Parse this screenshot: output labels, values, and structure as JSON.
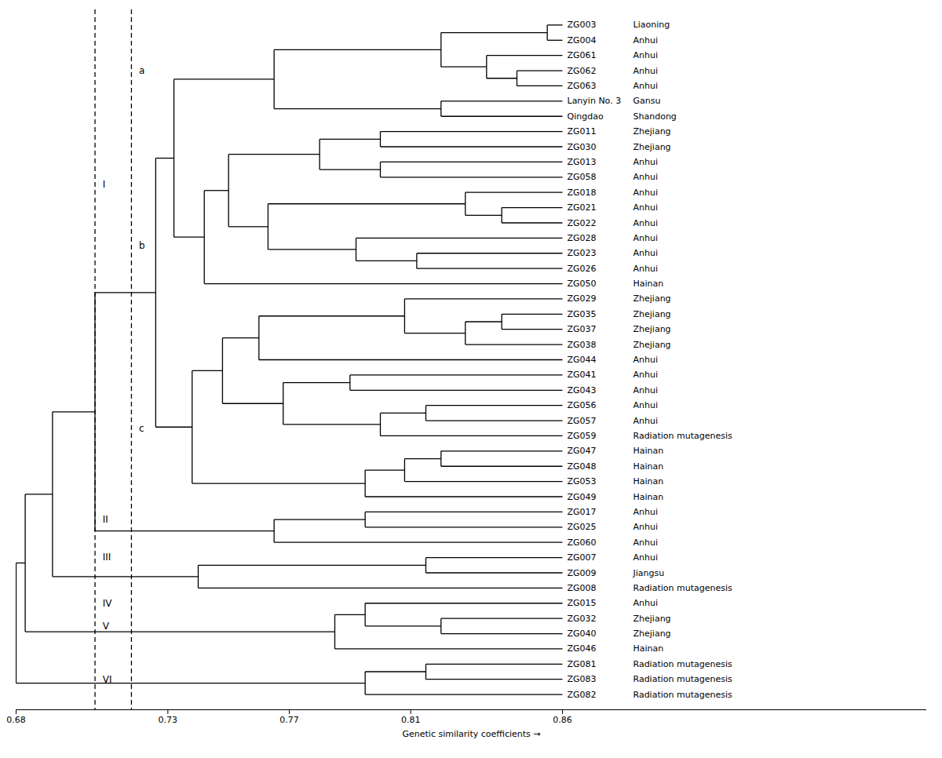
{
  "chart_data": {
    "type": "dendrogram",
    "xlabel": "Genetic similarity coefficients",
    "xlim": [
      0.68,
      0.98
    ],
    "xticks": [
      0.68,
      0.73,
      0.77,
      0.81,
      0.86
    ],
    "grid": false,
    "color": "#000000",
    "leaf_similarity": 0.86,
    "leaves": [
      "ZG003",
      "ZG004",
      "ZG061",
      "ZG062",
      "ZG063",
      "Lanyin No. 3",
      "Qingdao",
      "ZG011",
      "ZG030",
      "ZG013",
      "ZG058",
      "ZG018",
      "ZG021",
      "ZG022",
      "ZG028",
      "ZG023",
      "ZG026",
      "ZG050",
      "ZG029",
      "ZG035",
      "ZG037",
      "ZG038",
      "ZG044",
      "ZG041",
      "ZG043",
      "ZG056",
      "ZG057",
      "ZG059",
      "ZG047",
      "ZG048",
      "ZG053",
      "ZG049",
      "ZG017",
      "ZG025",
      "ZG060",
      "ZG007",
      "ZG009",
      "ZG008",
      "ZG015",
      "ZG032",
      "ZG040",
      "ZG046",
      "ZG081",
      "ZG083",
      "ZG082"
    ],
    "origins": [
      "Liaoning",
      "Anhui",
      "Anhui",
      "Anhui",
      "Anhui",
      "Gansu",
      "Shandong",
      "Zhejiang",
      "Zhejiang",
      "Anhui",
      "Anhui",
      "Anhui",
      "Anhui",
      "Anhui",
      "Anhui",
      "Anhui",
      "Anhui",
      "Hainan",
      "Zhejiang",
      "Zhejiang",
      "Zhejiang",
      "Zhejiang",
      "Anhui",
      "Anhui",
      "Anhui",
      "Anhui",
      "Anhui",
      "Radiation mutagenesis",
      "Hainan",
      "Hainan",
      "Hainan",
      "Hainan",
      "Anhui",
      "Anhui",
      "Anhui",
      "Anhui",
      "Jiangsu",
      "Radiation mutagenesis",
      "Anhui",
      "Zhejiang",
      "Zhejiang",
      "Hainan",
      "Radiation mutagenesis",
      "Radiation mutagenesis",
      "Radiation mutagenesis"
    ],
    "tree": {
      "similarity": 0.68,
      "children": [
        {
          "similarity": 0.683,
          "children": [
            {
              "similarity": 0.692,
              "children": [
                {
                  "similarity": 0.706,
                  "children": [
                    {
                      "similarity": 0.726,
                      "children": [
                        {
                          "similarity": 0.732,
                          "children": [
                            {
                              "similarity": 0.765,
                              "children": [
                                {
                                  "similarity": 0.82,
                                  "children": [
                                    {
                                      "similarity": 0.855,
                                      "children": [
                                        "ZG003",
                                        "ZG004"
                                      ]
                                    },
                                    {
                                      "similarity": 0.835,
                                      "children": [
                                        "ZG061",
                                        {
                                          "similarity": 0.845,
                                          "children": [
                                            "ZG062",
                                            "ZG063"
                                          ]
                                        }
                                      ]
                                    }
                                  ]
                                },
                                {
                                  "similarity": 0.82,
                                  "children": [
                                    "Lanyin No. 3",
                                    "Qingdao"
                                  ]
                                }
                              ]
                            },
                            {
                              "similarity": 0.742,
                              "children": [
                                {
                                  "similarity": 0.75,
                                  "children": [
                                    {
                                      "similarity": 0.78,
                                      "children": [
                                        {
                                          "similarity": 0.8,
                                          "children": [
                                            "ZG011",
                                            "ZG030"
                                          ]
                                        },
                                        {
                                          "similarity": 0.8,
                                          "children": [
                                            "ZG013",
                                            "ZG058"
                                          ]
                                        }
                                      ]
                                    },
                                    {
                                      "similarity": 0.763,
                                      "children": [
                                        {
                                          "similarity": 0.828,
                                          "children": [
                                            "ZG018",
                                            {
                                              "similarity": 0.84,
                                              "children": [
                                                "ZG021",
                                                "ZG022"
                                              ]
                                            }
                                          ]
                                        },
                                        {
                                          "similarity": 0.792,
                                          "children": [
                                            "ZG028",
                                            {
                                              "similarity": 0.812,
                                              "children": [
                                                "ZG023",
                                                "ZG026"
                                              ]
                                            }
                                          ]
                                        }
                                      ]
                                    }
                                  ]
                                },
                                "ZG050"
                              ]
                            }
                          ]
                        },
                        {
                          "similarity": 0.738,
                          "children": [
                            {
                              "similarity": 0.748,
                              "children": [
                                {
                                  "similarity": 0.76,
                                  "children": [
                                    {
                                      "similarity": 0.808,
                                      "children": [
                                        "ZG029",
                                        {
                                          "similarity": 0.828,
                                          "children": [
                                            {
                                              "similarity": 0.84,
                                              "children": [
                                                "ZG035",
                                                "ZG037"
                                              ]
                                            },
                                            "ZG038"
                                          ]
                                        }
                                      ]
                                    },
                                    "ZG044"
                                  ]
                                },
                                {
                                  "similarity": 0.768,
                                  "children": [
                                    {
                                      "similarity": 0.79,
                                      "children": [
                                        "ZG041",
                                        "ZG043"
                                      ]
                                    },
                                    {
                                      "similarity": 0.8,
                                      "children": [
                                        {
                                          "similarity": 0.815,
                                          "children": [
                                            "ZG056",
                                            "ZG057"
                                          ]
                                        },
                                        "ZG059"
                                      ]
                                    }
                                  ]
                                }
                              ]
                            },
                            {
                              "similarity": 0.795,
                              "children": [
                                {
                                  "similarity": 0.808,
                                  "children": [
                                    {
                                      "similarity": 0.82,
                                      "children": [
                                        "ZG047",
                                        "ZG048"
                                      ]
                                    },
                                    "ZG053"
                                  ]
                                },
                                "ZG049"
                              ]
                            }
                          ]
                        }
                      ]
                    },
                    {
                      "similarity": 0.765,
                      "children": [
                        {
                          "similarity": 0.795,
                          "children": [
                            "ZG017",
                            "ZG025"
                          ]
                        },
                        "ZG060"
                      ]
                    }
                  ]
                },
                {
                  "similarity": 0.74,
                  "children": [
                    {
                      "similarity": 0.815,
                      "children": [
                        "ZG007",
                        "ZG009"
                      ]
                    },
                    "ZG008"
                  ]
                }
              ]
            },
            {
              "similarity": 0.785,
              "children": [
                {
                  "similarity": 0.795,
                  "children": [
                    "ZG015",
                    {
                      "similarity": 0.82,
                      "children": [
                        "ZG032",
                        "ZG040"
                      ]
                    }
                  ]
                },
                "ZG046"
              ]
            }
          ]
        },
        {
          "similarity": 0.795,
          "children": [
            {
              "similarity": 0.815,
              "children": [
                "ZG081",
                "ZG083"
              ]
            },
            "ZG082"
          ]
        }
      ]
    },
    "reference_lines": [
      0.706,
      0.718
    ],
    "group_labels": [
      {
        "text": "I",
        "x": 0.7085,
        "leaf_position": 10.5
      },
      {
        "text": "II",
        "x": 0.7085,
        "leaf_position": 32.5
      },
      {
        "text": "III",
        "x": 0.7085,
        "leaf_position": 35.0
      },
      {
        "text": "IV",
        "x": 0.7085,
        "leaf_position": 38.0
      },
      {
        "text": "V",
        "x": 0.7085,
        "leaf_position": 39.5
      },
      {
        "text": "VI",
        "x": 0.7085,
        "leaf_position": 43.0
      },
      {
        "text": "a",
        "x": 0.7205,
        "leaf_position": 3.0
      },
      {
        "text": "b",
        "x": 0.7205,
        "leaf_position": 14.5
      },
      {
        "text": "c",
        "x": 0.7205,
        "leaf_position": 26.5
      }
    ]
  }
}
